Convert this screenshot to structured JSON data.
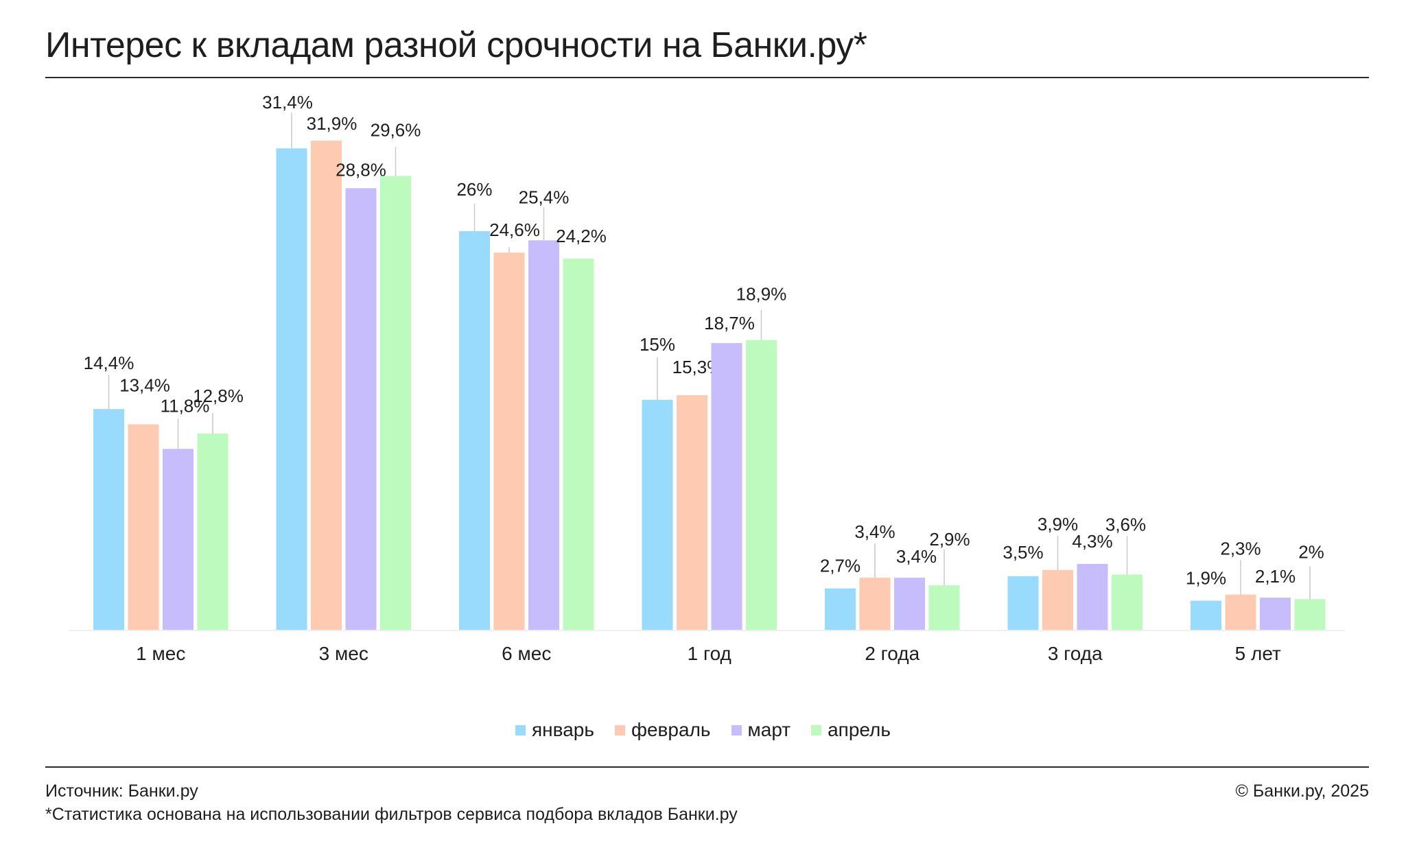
{
  "title": "Интерес к вкладам разной срочности на Банки.ру*",
  "footer": {
    "source": "Источник: Банки.ру",
    "note": "*Статистика основана на использовании фильтров сервиса подбора вкладов Банки.ру",
    "copyright": "© Банки.ру, 2025"
  },
  "chart_data": {
    "type": "bar",
    "title": "Интерес к вкладам разной срочности на Банки.ру*",
    "categories": [
      "1 мес",
      "3 мес",
      "6 мес",
      "1 год",
      "2 года",
      "3 года",
      "5 лет"
    ],
    "series": [
      {
        "name": "январь",
        "color": "#98dbfd",
        "values": [
          14.4,
          31.4,
          26,
          15,
          2.7,
          3.5,
          1.9
        ],
        "labels": [
          "14,4%",
          "31,4%",
          "26%",
          "15%",
          "2,7%",
          "3,5%",
          "1,9%"
        ]
      },
      {
        "name": "февраль",
        "color": "#fecab2",
        "values": [
          13.4,
          31.9,
          24.6,
          15.3,
          3.4,
          3.9,
          2.3
        ],
        "labels": [
          "13,4%",
          "31,9%",
          "24,6%",
          "15,3%",
          "3,4%",
          "3,9%",
          "2,3%"
        ]
      },
      {
        "name": "март",
        "color": "#c7bdfd",
        "values": [
          11.8,
          28.8,
          25.4,
          18.7,
          3.4,
          4.3,
          2.1
        ],
        "labels": [
          "11,8%",
          "28,8%",
          "25,4%",
          "18,7%",
          "3,4%",
          "4,3%",
          "2,1%"
        ]
      },
      {
        "name": "апрель",
        "color": "#bdfabd",
        "values": [
          12.8,
          29.6,
          24.2,
          18.9,
          2.9,
          3.6,
          2
        ],
        "labels": [
          "12,8%",
          "29,6%",
          "24,2%",
          "18,9%",
          "2,9%",
          "3,6%",
          "2%"
        ]
      }
    ],
    "ylim": [
      0,
      35
    ],
    "grid": false,
    "legend": "bottom-center"
  }
}
